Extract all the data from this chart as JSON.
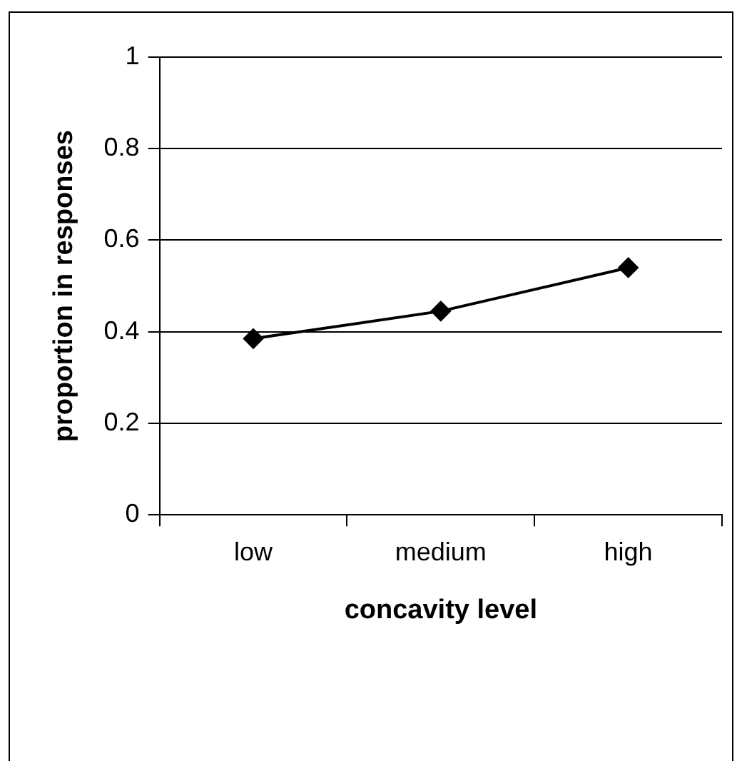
{
  "chart_data": {
    "type": "line",
    "xlabel": "concavity level",
    "ylabel": "proportion in responses",
    "categories": [
      "low",
      "medium",
      "high"
    ],
    "series": [
      {
        "color": "#000000",
        "values": [
          0.385,
          0.445,
          0.54
        ]
      }
    ],
    "ylim": [
      0,
      1
    ],
    "yticks": [
      0,
      0.2,
      0.4,
      0.6,
      0.8,
      1
    ],
    "grid": "y",
    "legend": false,
    "marker": "diamond",
    "line_style": "solid"
  }
}
